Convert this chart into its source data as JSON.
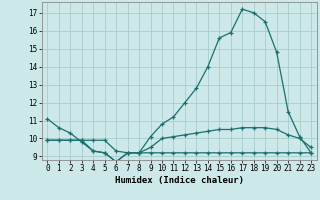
{
  "xlabel": "Humidex (Indice chaleur)",
  "background_color": "#cce8e8",
  "grid_color": "#aacccc",
  "line_color": "#1a7070",
  "x_values": [
    0,
    1,
    2,
    3,
    4,
    5,
    6,
    7,
    8,
    9,
    10,
    11,
    12,
    13,
    14,
    15,
    16,
    17,
    18,
    19,
    20,
    21,
    22,
    23
  ],
  "line_upper": [
    11.1,
    10.6,
    10.3,
    9.8,
    9.3,
    9.2,
    8.7,
    9.2,
    9.2,
    10.1,
    10.8,
    11.2,
    12.0,
    12.8,
    14.0,
    15.6,
    15.9,
    17.2,
    17.0,
    16.5,
    14.8,
    11.5,
    10.1,
    9.2
  ],
  "line_mid": [
    9.9,
    9.9,
    9.9,
    9.9,
    9.9,
    9.9,
    9.3,
    9.2,
    9.2,
    9.5,
    10.0,
    10.1,
    10.2,
    10.3,
    10.4,
    10.5,
    10.5,
    10.6,
    10.6,
    10.6,
    10.5,
    10.2,
    10.0,
    9.5
  ],
  "line_lower": [
    9.9,
    9.9,
    9.9,
    9.9,
    9.3,
    9.2,
    8.7,
    9.2,
    9.2,
    9.2,
    9.2,
    9.2,
    9.2,
    9.2,
    9.2,
    9.2,
    9.2,
    9.2,
    9.2,
    9.2,
    9.2,
    9.2,
    9.2,
    9.2
  ],
  "ylim_min": 8.8,
  "ylim_max": 17.6,
  "yticks": [
    9,
    10,
    11,
    12,
    13,
    14,
    15,
    16,
    17
  ],
  "xticks": [
    0,
    1,
    2,
    3,
    4,
    5,
    6,
    7,
    8,
    9,
    10,
    11,
    12,
    13,
    14,
    15,
    16,
    17,
    18,
    19,
    20,
    21,
    22,
    23
  ],
  "tick_fontsize": 5.5,
  "xlabel_fontsize": 6.5
}
